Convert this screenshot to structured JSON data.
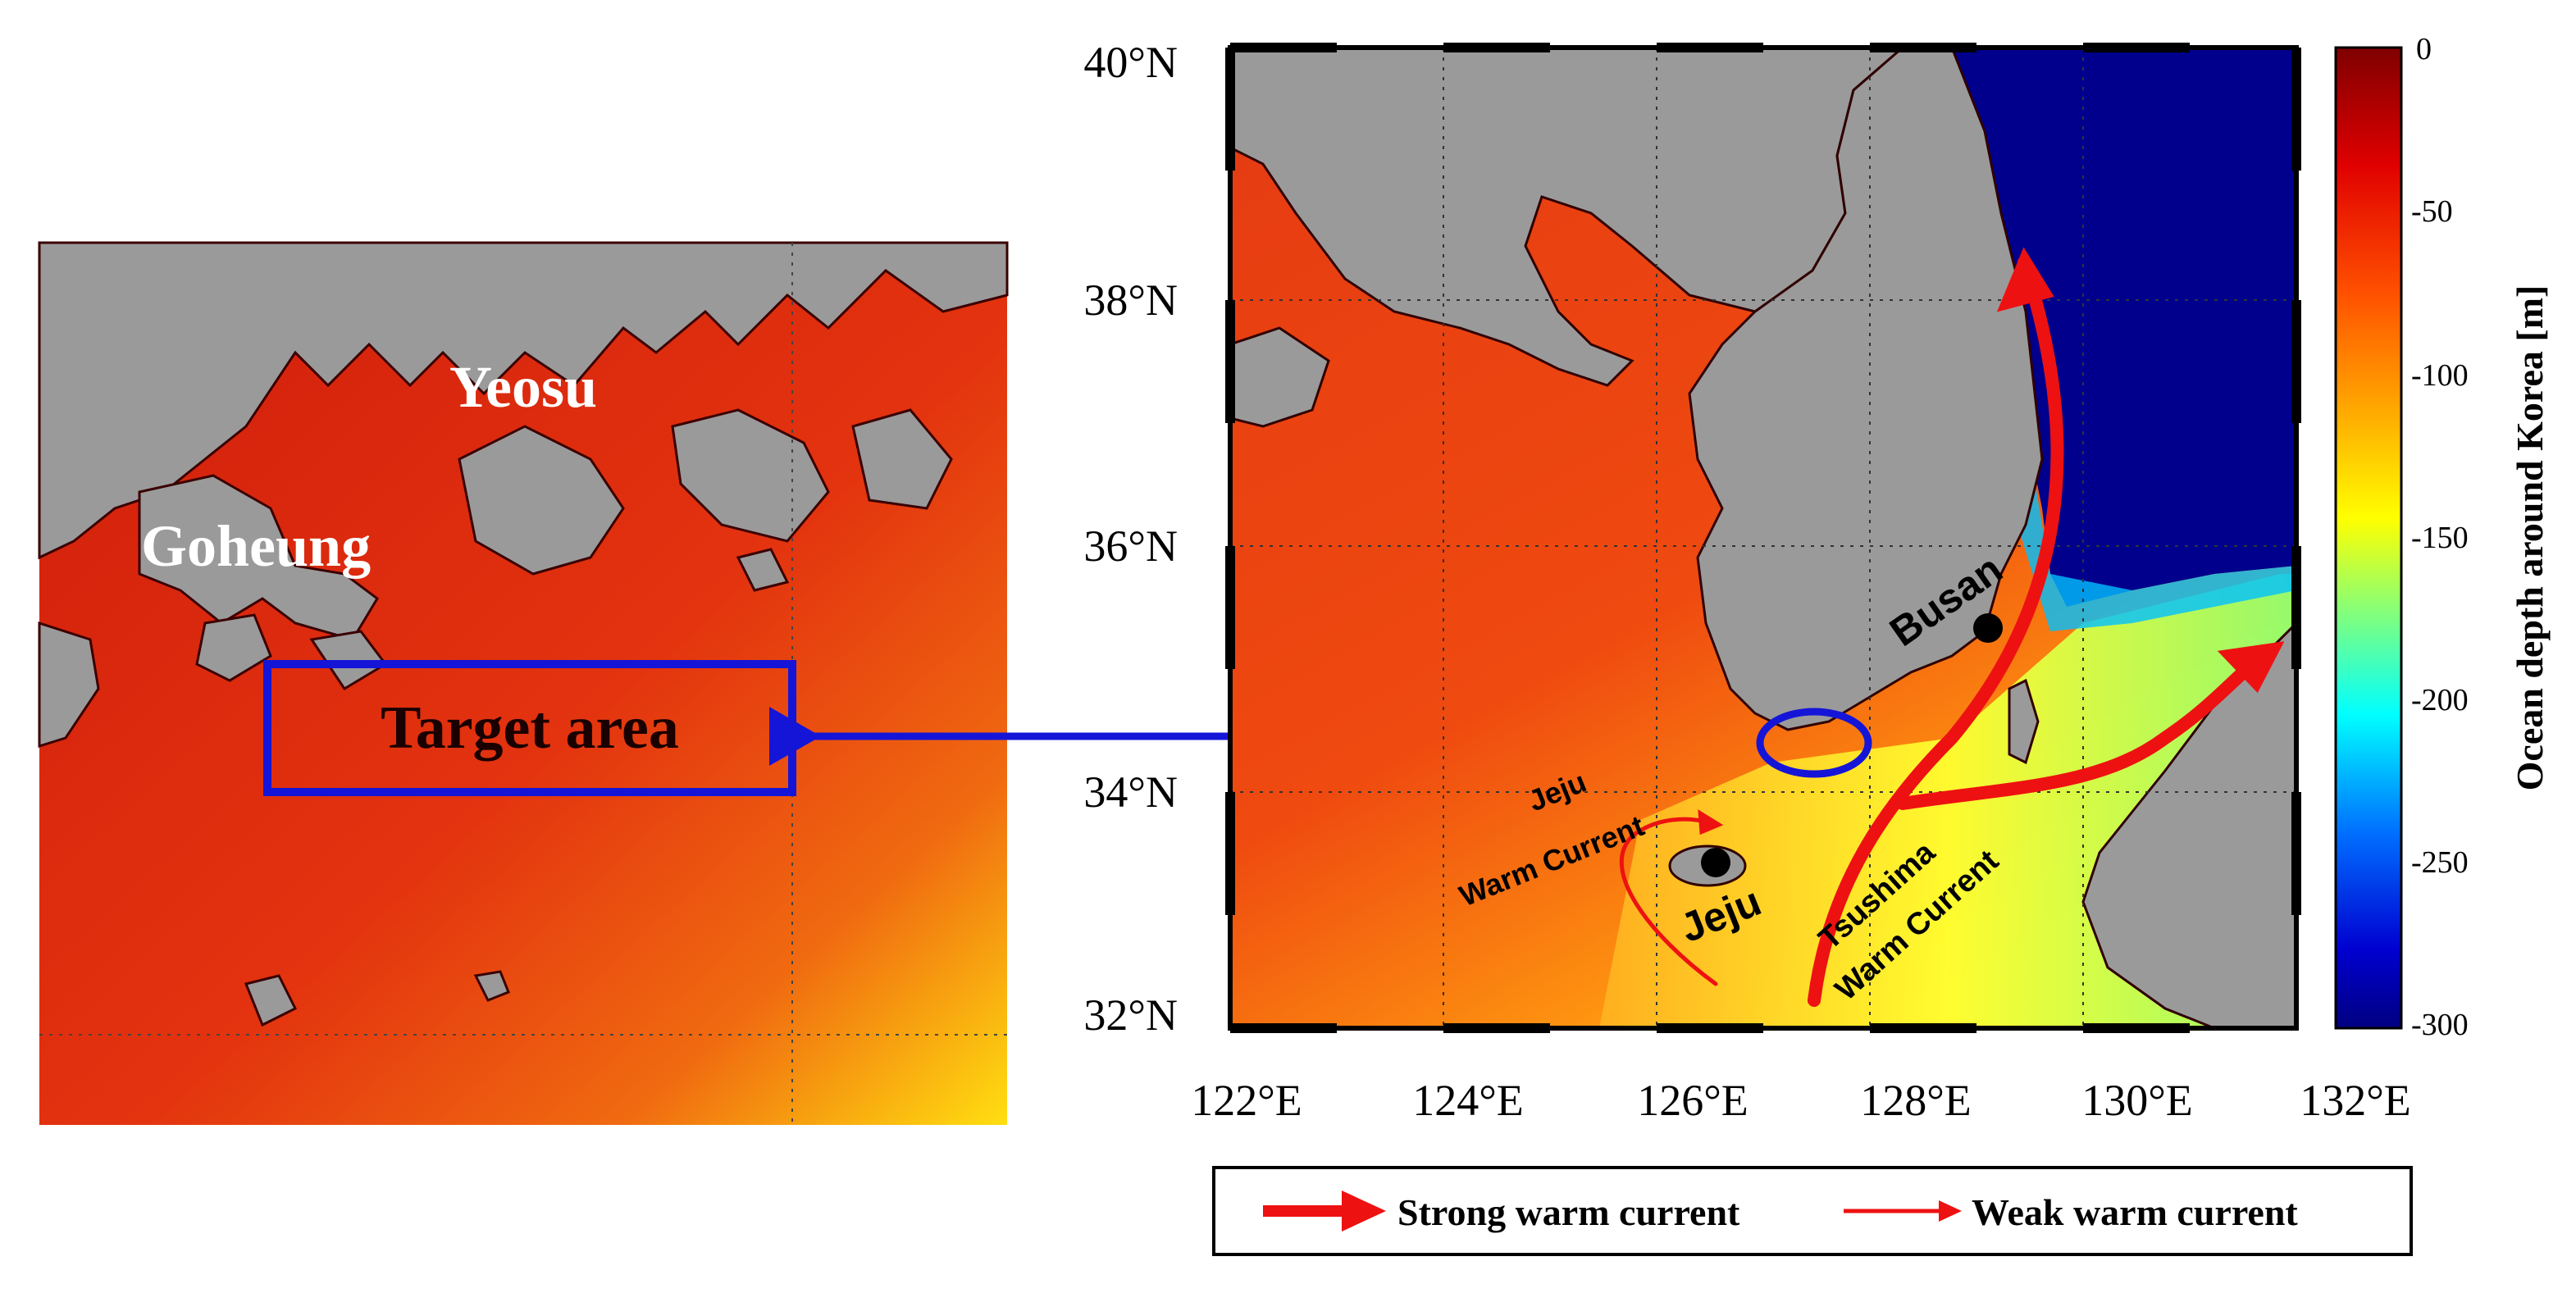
{
  "left_panel": {
    "labels": {
      "yeosu": "Yeosu",
      "goheung": "Goheung",
      "target": "Target area"
    }
  },
  "main_map": {
    "lat_ticks": [
      "40°N",
      "38°N",
      "36°N",
      "34°N",
      "32°N"
    ],
    "lon_ticks": [
      "122°E",
      "124°E",
      "126°E",
      "128°E",
      "130°E",
      "132°E"
    ],
    "labels": {
      "busan": "Busan",
      "jeju": "Jeju",
      "jeju_current_1": "Jeju",
      "jeju_current_2": "Warm Current",
      "tsushima_1": "Tsushima",
      "tsushima_2": "Warm Current"
    }
  },
  "colorbar": {
    "title": "Ocean depth around Korea [m]",
    "ticks": [
      "0",
      "-50",
      "-100",
      "-150",
      "-200",
      "-250",
      "-300"
    ],
    "colors": [
      "#7f0000",
      "#ff1a00",
      "#ff9a00",
      "#ffff00",
      "#7fff7f",
      "#00ffff",
      "#0080ff",
      "#000080"
    ]
  },
  "legend": {
    "strong_label": "Strong warm current",
    "weak_label": "Weak warm current",
    "arrow_color": "#ee1111"
  },
  "colors": {
    "land": "#9a9a9a",
    "sea_shallow": "#e02818",
    "sea_deep": "#00008c",
    "box_color": "#1515d8"
  }
}
